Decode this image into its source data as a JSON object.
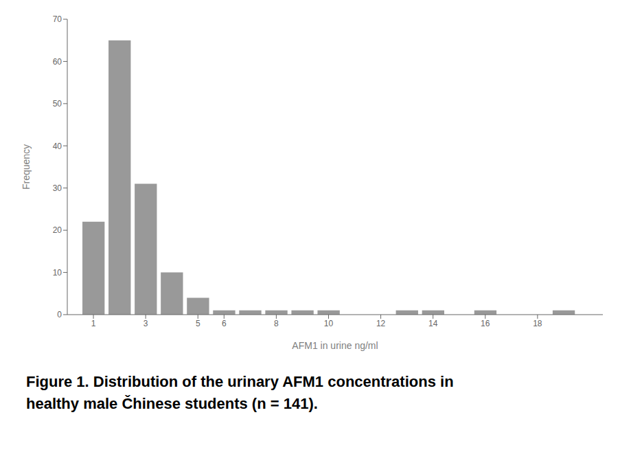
{
  "chart_data": {
    "type": "bar",
    "x": [
      1,
      2,
      3,
      4,
      5,
      6,
      7,
      8,
      9,
      10,
      11,
      12,
      13,
      14,
      15,
      16,
      17,
      18,
      19
    ],
    "values": [
      22,
      65,
      31,
      10,
      4,
      1,
      1,
      1,
      1,
      1,
      0,
      0,
      1,
      1,
      0,
      1,
      0,
      0,
      1
    ],
    "color": "#999999",
    "x_label": "AFM1 in urine ng/ml",
    "y_label": "Frequency",
    "xlim": [
      0.0,
      20.5
    ],
    "xticks": [
      1,
      3,
      5,
      6,
      8,
      10,
      12,
      14,
      16,
      18
    ],
    "ylim": [
      0,
      70
    ],
    "yticks": [
      0,
      10,
      20,
      30,
      40,
      50,
      60,
      70
    ],
    "grid": false,
    "annotations": [
      "Figure 1. Distribution of the urinary AFM1 concentrations in",
      "healthy male Čhinese students (n = 141)."
    ]
  }
}
